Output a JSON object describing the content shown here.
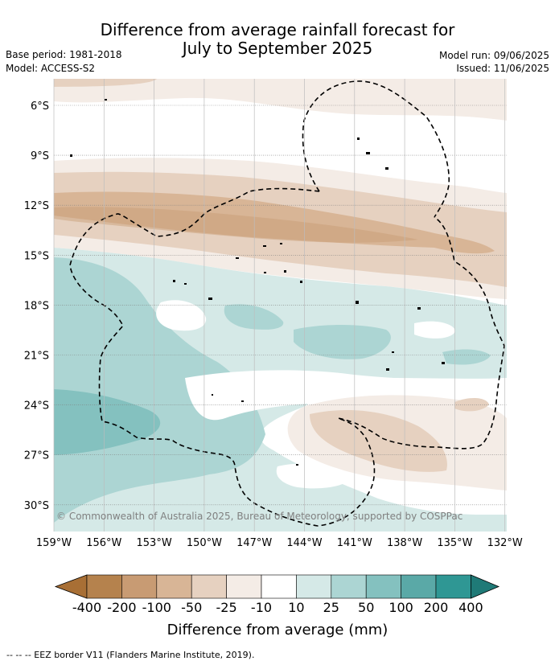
{
  "title": {
    "line1": "Difference from average rainfall forecast for",
    "line2": "July to September 2025"
  },
  "meta": {
    "base_period": "Base period: 1981-2018",
    "model": "Model: ACCESS-S2",
    "model_run": "Model run: 09/06/2025",
    "issued": "Issued: 11/06/2025"
  },
  "map": {
    "lat_labels": [
      "6°S",
      "9°S",
      "12°S",
      "15°S",
      "18°S",
      "21°S",
      "24°S",
      "27°S",
      "30°S"
    ],
    "lon_labels": [
      "159°W",
      "156°W",
      "153°W",
      "150°W",
      "147°W",
      "144°W",
      "141°W",
      "138°W",
      "135°W",
      "132°W"
    ],
    "copyright": "© Commonwealth of Australia 2025, Bureau of Meteorology, supported by COSPPac"
  },
  "colorbar": {
    "labels": [
      "-400",
      "-200",
      "-100",
      "-50",
      "-25",
      "-10",
      "10",
      "25",
      "50",
      "100",
      "200",
      "400"
    ],
    "colors": [
      "#a86f35",
      "#b5824d",
      "#c89b73",
      "#d8b596",
      "#e6d1c0",
      "#f4ece6",
      "#ffffff",
      "#d5e9e7",
      "#acd5d3",
      "#84c1bf",
      "#5aa9a7",
      "#2f9794",
      "#1f7a77"
    ],
    "title": "Difference from average (mm)"
  },
  "footnote": "-- -- -- EEZ border V11 (Flanders Marine Institute, 2019)."
}
